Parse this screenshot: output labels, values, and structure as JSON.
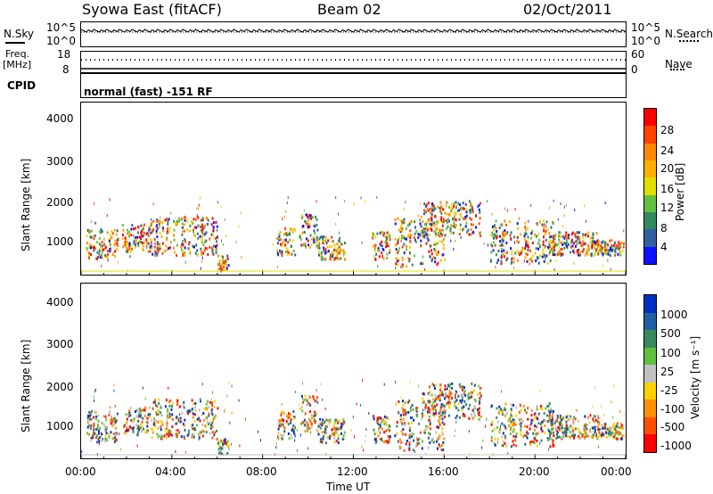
{
  "header": {
    "station": "Syowa East (fitACF)",
    "beam": "Beam 02",
    "date": "02/Oct/2011"
  },
  "top_panels": {
    "nsky_label": "N.Sky",
    "nsky_ticks": [
      "10^5",
      "10^0"
    ],
    "nsearch_label": "N.Search",
    "nsearch_ticks": [
      "10^5",
      "10^0"
    ],
    "freq_label": "Freq.",
    "freq_unit": "[MHz]",
    "freq_ticks": [
      "18",
      "8"
    ],
    "nave_label": "Nave",
    "nave_ticks": [
      "60",
      "0"
    ],
    "cpid_label": "CPID",
    "cpid_text": "normal (fast) -151 RF"
  },
  "chart_data": [
    {
      "type": "heatmap",
      "name": "power",
      "ylabel": "Slant Range [km]",
      "yticks": [
        "4000",
        "3000",
        "2000",
        "1000"
      ],
      "ylim": [
        180,
        4600
      ],
      "xlim_hours": [
        0,
        24
      ],
      "colorbar": {
        "label": "Power [dB]",
        "ticks": [
          "28",
          "24",
          "20",
          "16",
          "12",
          "8",
          "4"
        ],
        "colors": [
          "#ff0000",
          "#ff4400",
          "#ff8800",
          "#ffb000",
          "#e0e000",
          "#60c040",
          "#308a60",
          "#3060a0",
          "#1010ff"
        ]
      }
    },
    {
      "type": "heatmap",
      "name": "velocity",
      "ylabel": "Slant Range [km]",
      "yticks": [
        "4000",
        "3000",
        "2000",
        "1000"
      ],
      "ylim": [
        180,
        4600
      ],
      "xlim_hours": [
        0,
        24
      ],
      "colorbar": {
        "label": "Velocity [m s⁻¹]",
        "ticks": [
          "1000",
          "500",
          "100",
          "25",
          "-25",
          "-100",
          "-500",
          "-1000"
        ],
        "colors": [
          "#0030c0",
          "#2060a0",
          "#3a8a60",
          "#60c040",
          "#c0c0c0",
          "#ffd000",
          "#ff9000",
          "#ff5000",
          "#ff0000"
        ]
      }
    }
  ],
  "xaxis": {
    "label": "Time UT",
    "ticks": [
      "00:00",
      "04:00",
      "08:00",
      "12:00",
      "16:00",
      "20:00",
      "00:00"
    ]
  }
}
